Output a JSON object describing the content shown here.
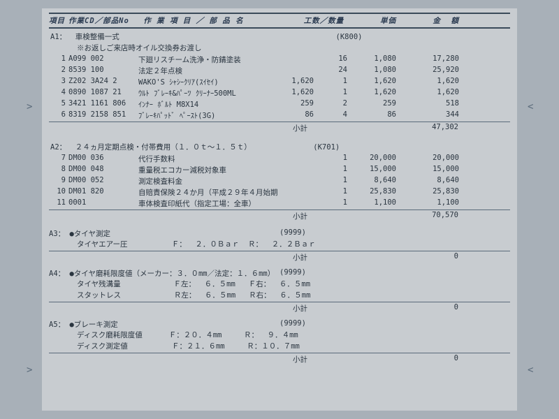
{
  "header": {
    "c1": "項目",
    "c2": "作業CD／部品No",
    "c3": " 作 業 項 目 ／ 部 品 名",
    "c4": "     工数／数量",
    "c5": "",
    "c6": "単価",
    "c7": "金  額"
  },
  "a1": {
    "title": "A1：  車検整備一式                                                 (K800)",
    "note": "※お返しご来店時オイル交換券お渡し",
    "rows": [
      {
        "n": "1",
        "cd": "A099 002",
        "nm": "下廻リスチーム洗浄・防錆塗装",
        "kosu": "",
        "qty": "16",
        "tanka": "1,080",
        "kin": "17,280"
      },
      {
        "n": "2",
        "cd": "8539 100",
        "nm": "法定２年点検",
        "kosu": "",
        "qty": "24",
        "tanka": "1,080",
        "kin": "25,920"
      },
      {
        "n": "3",
        "cd": "Z202 3A24 2",
        "nm": "WAKO'S ｼｬｼｰｸﾘｱ(ｽｲｾｲ)",
        "kosu": "1,620",
        "qty": "1",
        "tanka": "1,620",
        "kin": "1,620"
      },
      {
        "n": "4",
        "cd": "0890 1087 21",
        "nm": "ｳﾙﾄ ﾌﾞﾚｰｷ&ﾊﾟｰﾂ ｸﾘｰﾅｰ500ML",
        "kosu": "1,620",
        "qty": "1",
        "tanka": "1,620",
        "kin": "1,620"
      },
      {
        "n": "5",
        "cd": "3421 1161 806",
        "nm": "ｲﾝﾅｰ ﾎﾞﾙﾄ M8X14",
        "kosu": "259",
        "qty": "2",
        "tanka": "259",
        "kin": "518"
      },
      {
        "n": "6",
        "cd": "8319 2158 851",
        "nm": "ﾌﾞﾚｰｷﾊﾟｯﾄﾞ ﾍﾟｰｽﾄ(3G)",
        "kosu": "86",
        "qty": "4",
        "tanka": "86",
        "kin": "344"
      }
    ],
    "subtotal_label": "小計",
    "subtotal": "47,302"
  },
  "a2": {
    "title": "A2：  ２４ヵ月定期点検・付帯費用（１．０ｔ～１．５ｔ）              (K701)",
    "rows": [
      {
        "n": "7",
        "cd": "DM00 036",
        "nm": "代行手数料",
        "kosu": "",
        "qty": "1",
        "tanka": "20,000",
        "kin": "20,000"
      },
      {
        "n": "8",
        "cd": "DM00 048",
        "nm": "重量税エコカー減税対象車",
        "kosu": "",
        "qty": "1",
        "tanka": "15,000",
        "kin": "15,000"
      },
      {
        "n": "9",
        "cd": "DM00 052",
        "nm": "測定検査料金",
        "kosu": "",
        "qty": "1",
        "tanka": "8,640",
        "kin": "8,640"
      },
      {
        "n": "10",
        "cd": "DM01 820",
        "nm": "自賠責保険２４か月（平成２９年４月始期から）",
        "kosu": "",
        "qty": "1",
        "tanka": "25,830",
        "kin": "25,830"
      },
      {
        "n": "11",
        "cd": "0001",
        "nm": "車体検査印紙代（指定工場：全車）",
        "kosu": "",
        "qty": "1",
        "tanka": "1,100",
        "kin": "1,100"
      }
    ],
    "subtotal_label": "小計",
    "subtotal": "70,570"
  },
  "a3": {
    "title": "A3：  ●タイヤ測定",
    "code": "(9999)",
    "m1": "タイヤエアー圧          Ｆ：  ２．０Ｂａｒ  Ｒ：  ２．２Ｂａｒ",
    "subtotal_label": "小計",
    "subtotal": "0"
  },
  "a4": {
    "title": "A4：  ●タイヤ磨耗限度値（メーカー：３．０mm／法定：１．６mm）",
    "code": "(9999)",
    "m1": "タイヤ残溝量            Ｆ左：  ６．５mm   Ｆ右：  ６．５mm",
    "m2": "スタットレス            Ｒ左：  ６．５mm   Ｒ右：  ６．５mm",
    "subtotal_label": "小計",
    "subtotal": "0"
  },
  "a5": {
    "title": "A5：  ●ブレーキ測定",
    "code": "(9999)",
    "m1": "ディスク磨耗限度値      Ｆ：２０．４mm     Ｒ：  ９．４mm",
    "m2": "ディスク測定値          Ｆ：２１．６mm     Ｒ：１０．７mm",
    "subtotal_label": "小計",
    "subtotal": "0"
  },
  "carets": {
    "l": ">",
    "r": "<"
  },
  "colors": {
    "bg": "#a8b0b8",
    "paper": "#c8ccd0",
    "ink": "#2a3540",
    "rule": "#3a4a5a"
  }
}
